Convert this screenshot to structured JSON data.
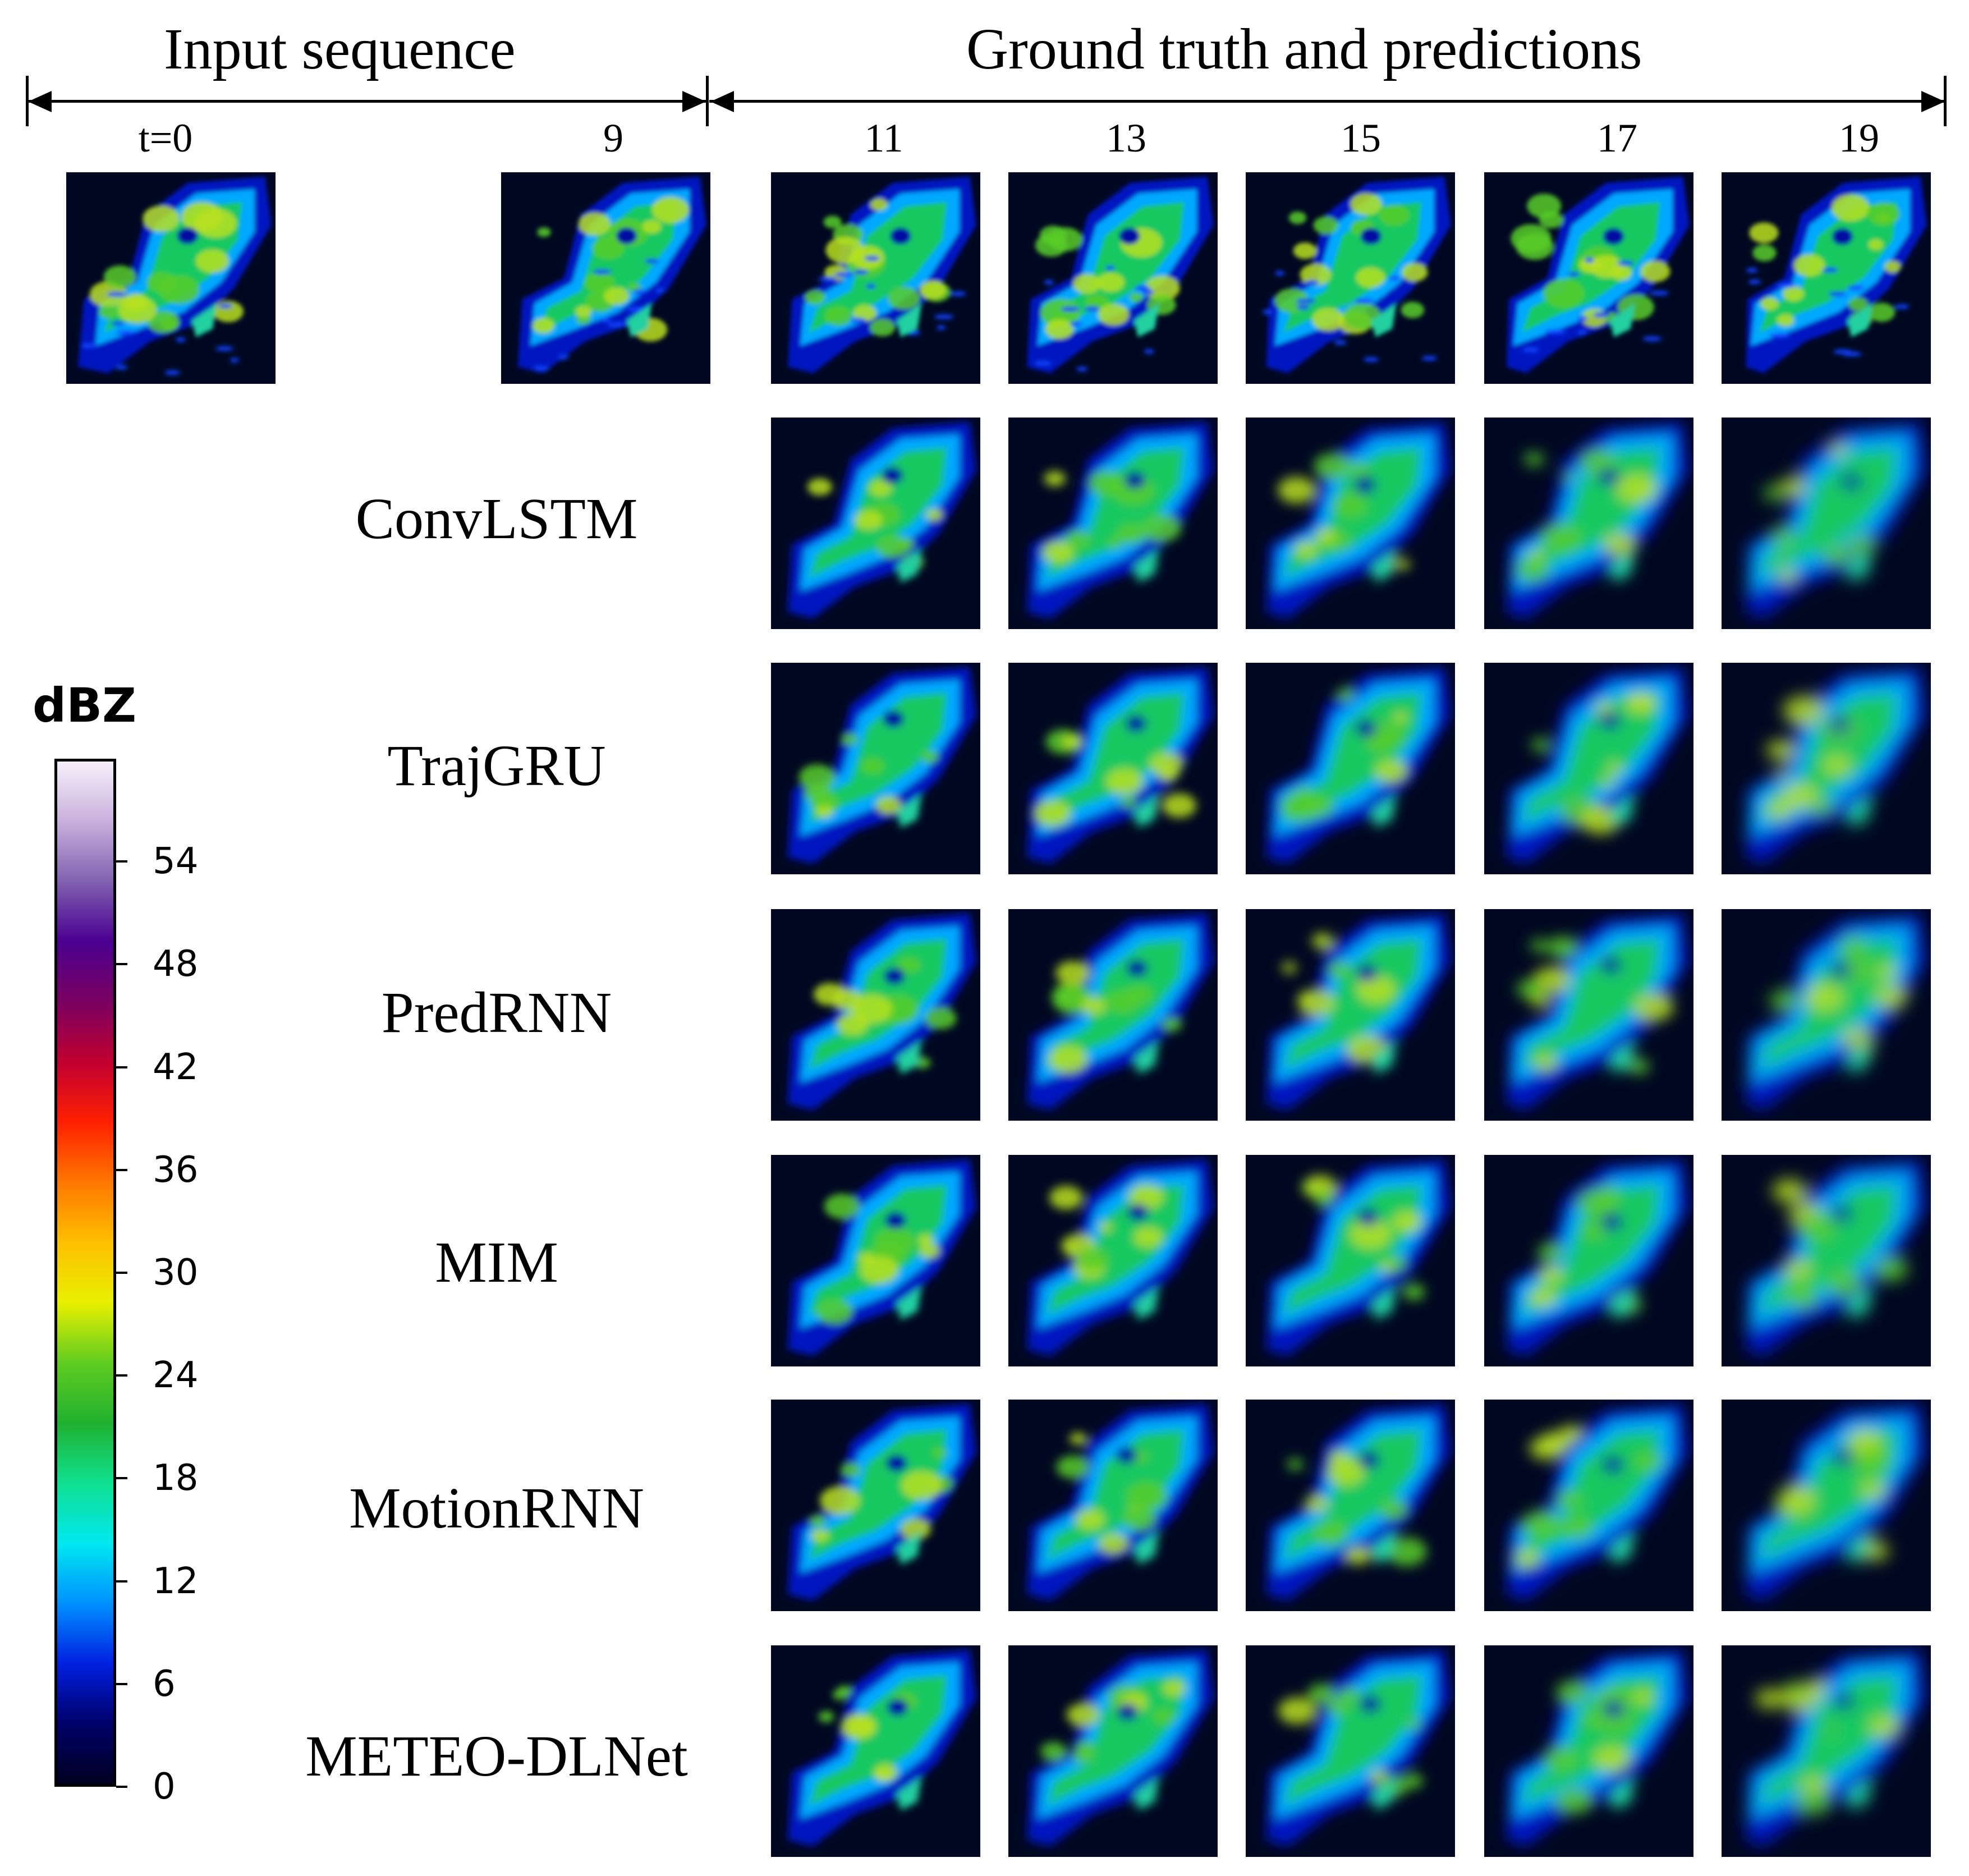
{
  "headers": {
    "input": "Input sequence",
    "truth": "Ground truth and predictions"
  },
  "time_labels": [
    "t=0",
    "9",
    "11",
    "13",
    "15",
    "17",
    "19"
  ],
  "row_labels": [
    "ConvLSTM",
    "TrajGRU",
    "PredRNN",
    "MIM",
    "MotionRNN",
    "METEO-DLNet"
  ],
  "colorbar": {
    "title": "dBZ",
    "ticks": [
      "0",
      "6",
      "12",
      "18",
      "24",
      "30",
      "36",
      "42",
      "48",
      "54"
    ],
    "range": [
      0,
      60
    ],
    "colors": [
      "#000020",
      "#00006a",
      "#0020e0",
      "#0090ff",
      "#00e8f0",
      "#10e090",
      "#20b030",
      "#60cc20",
      "#e8f000",
      "#ffc000",
      "#ff7800",
      "#ff2000",
      "#c00030",
      "#7a0060",
      "#4a0090",
      "#8060b0",
      "#c8b0dc",
      "#f6f0fa"
    ]
  },
  "legend": {
    "background": "#000821"
  }
}
